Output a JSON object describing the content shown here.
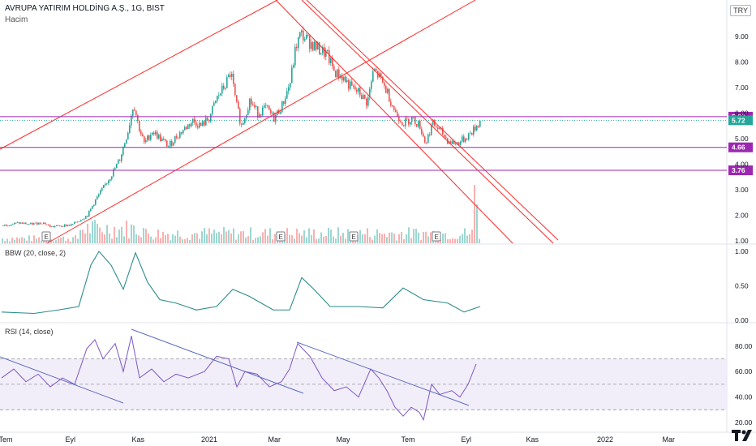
{
  "header": {
    "symbol_line": "AVRUPA YATIRIM HOLDİNG A.Ş., 1G, BIST",
    "volume_label": "Hacim",
    "currency": "TRY"
  },
  "panes": {
    "bbw_title": "BBW (20, close, 2)",
    "rsi_title": "RSI (14, close)"
  },
  "colors": {
    "up": "#26a69a",
    "down": "#ef5350",
    "trendline": "#ff2b2b",
    "level": "#9c27b0",
    "bbw_line": "#2e8b8b",
    "rsi_line": "#7e57c2",
    "rsi_band": "#ede7f6",
    "last_price": "#26a69a"
  },
  "chart_data": [
    {
      "type": "candlestick",
      "name": "price",
      "y_ticks": [
        "1.00",
        "2.00",
        "3.00",
        "4.00",
        "5.00",
        "6.00",
        "7.00",
        "8.00",
        "9.00"
      ],
      "x_ticks": [
        "Tem",
        "Eyl",
        "Kas",
        "2021",
        "Mar",
        "May",
        "Tem",
        "Eyl",
        "Kas",
        "2022",
        "Mar"
      ],
      "levels": [
        {
          "value": 5.86,
          "label": "5.86"
        },
        {
          "value": 4.66,
          "label": "4.66"
        },
        {
          "value": 3.76,
          "label": "3.76"
        }
      ],
      "last_price": {
        "value": 5.72,
        "label": "5.72"
      },
      "event_markers": [
        "E",
        "E",
        "E",
        "E"
      ],
      "series_path": [
        {
          "t": 0,
          "c": 1.6
        },
        {
          "t": 20,
          "c": 1.7
        },
        {
          "t": 35,
          "c": 1.65
        },
        {
          "t": 50,
          "c": 1.72
        },
        {
          "t": 60,
          "c": 1.55
        },
        {
          "t": 75,
          "c": 1.6
        },
        {
          "t": 85,
          "c": 1.62
        },
        {
          "t": 95,
          "c": 1.8
        },
        {
          "t": 105,
          "c": 2.0
        },
        {
          "t": 115,
          "c": 2.6
        },
        {
          "t": 125,
          "c": 3.1
        },
        {
          "t": 135,
          "c": 3.6
        },
        {
          "t": 145,
          "c": 4.2
        },
        {
          "t": 155,
          "c": 5.3
        },
        {
          "t": 162,
          "c": 6.4
        },
        {
          "t": 168,
          "c": 5.5
        },
        {
          "t": 175,
          "c": 4.8
        },
        {
          "t": 185,
          "c": 5.3
        },
        {
          "t": 195,
          "c": 5.0
        },
        {
          "t": 205,
          "c": 4.7
        },
        {
          "t": 215,
          "c": 5.1
        },
        {
          "t": 225,
          "c": 5.4
        },
        {
          "t": 235,
          "c": 5.7
        },
        {
          "t": 245,
          "c": 5.5
        },
        {
          "t": 255,
          "c": 5.8
        },
        {
          "t": 265,
          "c": 6.6
        },
        {
          "t": 275,
          "c": 7.1
        },
        {
          "t": 282,
          "c": 7.6
        },
        {
          "t": 288,
          "c": 6.4
        },
        {
          "t": 295,
          "c": 5.5
        },
        {
          "t": 305,
          "c": 6.5
        },
        {
          "t": 315,
          "c": 6.0
        },
        {
          "t": 325,
          "c": 6.2
        },
        {
          "t": 335,
          "c": 5.8
        },
        {
          "t": 345,
          "c": 6.3
        },
        {
          "t": 355,
          "c": 7.2
        },
        {
          "t": 362,
          "c": 8.6
        },
        {
          "t": 368,
          "c": 9.1
        },
        {
          "t": 378,
          "c": 8.8
        },
        {
          "t": 390,
          "c": 8.5
        },
        {
          "t": 400,
          "c": 8.3
        },
        {
          "t": 410,
          "c": 7.6
        },
        {
          "t": 420,
          "c": 7.4
        },
        {
          "t": 430,
          "c": 7.0
        },
        {
          "t": 440,
          "c": 6.8
        },
        {
          "t": 450,
          "c": 6.4
        },
        {
          "t": 458,
          "c": 7.7
        },
        {
          "t": 465,
          "c": 7.4
        },
        {
          "t": 475,
          "c": 6.8
        },
        {
          "t": 485,
          "c": 6.0
        },
        {
          "t": 495,
          "c": 5.6
        },
        {
          "t": 505,
          "c": 5.8
        },
        {
          "t": 515,
          "c": 5.5
        },
        {
          "t": 522,
          "c": 4.8
        },
        {
          "t": 530,
          "c": 5.6
        },
        {
          "t": 540,
          "c": 5.3
        },
        {
          "t": 550,
          "c": 4.9
        },
        {
          "t": 560,
          "c": 4.8
        },
        {
          "t": 570,
          "c": 5.0
        },
        {
          "t": 580,
          "c": 5.3
        },
        {
          "t": 590,
          "c": 5.72
        }
      ]
    },
    {
      "type": "line",
      "name": "BBW",
      "y_ticks": [
        "0.00",
        "0.50",
        "1.00"
      ],
      "points": [
        {
          "t": 0,
          "v": 0.12
        },
        {
          "t": 40,
          "v": 0.1
        },
        {
          "t": 70,
          "v": 0.15
        },
        {
          "t": 95,
          "v": 0.2
        },
        {
          "t": 110,
          "v": 0.8
        },
        {
          "t": 120,
          "v": 1.0
        },
        {
          "t": 135,
          "v": 0.8
        },
        {
          "t": 150,
          "v": 0.45
        },
        {
          "t": 165,
          "v": 0.98
        },
        {
          "t": 180,
          "v": 0.55
        },
        {
          "t": 195,
          "v": 0.3
        },
        {
          "t": 215,
          "v": 0.25
        },
        {
          "t": 240,
          "v": 0.15
        },
        {
          "t": 265,
          "v": 0.2
        },
        {
          "t": 285,
          "v": 0.45
        },
        {
          "t": 305,
          "v": 0.35
        },
        {
          "t": 335,
          "v": 0.15
        },
        {
          "t": 355,
          "v": 0.15
        },
        {
          "t": 370,
          "v": 0.62
        },
        {
          "t": 385,
          "v": 0.45
        },
        {
          "t": 405,
          "v": 0.2
        },
        {
          "t": 440,
          "v": 0.2
        },
        {
          "t": 470,
          "v": 0.18
        },
        {
          "t": 495,
          "v": 0.47
        },
        {
          "t": 520,
          "v": 0.3
        },
        {
          "t": 550,
          "v": 0.25
        },
        {
          "t": 570,
          "v": 0.12
        },
        {
          "t": 590,
          "v": 0.2
        }
      ]
    },
    {
      "type": "line",
      "name": "RSI",
      "y_ticks": [
        "20.00",
        "40.00",
        "60.00",
        "80.00"
      ],
      "band": [
        30,
        70
      ],
      "midline": 50,
      "points": [
        {
          "t": 0,
          "v": 55
        },
        {
          "t": 15,
          "v": 62
        },
        {
          "t": 30,
          "v": 52
        },
        {
          "t": 45,
          "v": 58
        },
        {
          "t": 60,
          "v": 48
        },
        {
          "t": 75,
          "v": 55
        },
        {
          "t": 90,
          "v": 50
        },
        {
          "t": 105,
          "v": 78
        },
        {
          "t": 115,
          "v": 85
        },
        {
          "t": 125,
          "v": 70
        },
        {
          "t": 140,
          "v": 82
        },
        {
          "t": 150,
          "v": 60
        },
        {
          "t": 160,
          "v": 88
        },
        {
          "t": 170,
          "v": 55
        },
        {
          "t": 185,
          "v": 62
        },
        {
          "t": 200,
          "v": 52
        },
        {
          "t": 215,
          "v": 58
        },
        {
          "t": 230,
          "v": 55
        },
        {
          "t": 250,
          "v": 60
        },
        {
          "t": 265,
          "v": 72
        },
        {
          "t": 280,
          "v": 70
        },
        {
          "t": 290,
          "v": 48
        },
        {
          "t": 300,
          "v": 60
        },
        {
          "t": 315,
          "v": 58
        },
        {
          "t": 330,
          "v": 48
        },
        {
          "t": 345,
          "v": 52
        },
        {
          "t": 355,
          "v": 62
        },
        {
          "t": 365,
          "v": 82
        },
        {
          "t": 380,
          "v": 72
        },
        {
          "t": 395,
          "v": 55
        },
        {
          "t": 410,
          "v": 45
        },
        {
          "t": 425,
          "v": 48
        },
        {
          "t": 440,
          "v": 40
        },
        {
          "t": 455,
          "v": 62
        },
        {
          "t": 465,
          "v": 55
        },
        {
          "t": 475,
          "v": 45
        },
        {
          "t": 485,
          "v": 32
        },
        {
          "t": 495,
          "v": 25
        },
        {
          "t": 505,
          "v": 32
        },
        {
          "t": 515,
          "v": 28
        },
        {
          "t": 520,
          "v": 22
        },
        {
          "t": 530,
          "v": 50
        },
        {
          "t": 540,
          "v": 42
        },
        {
          "t": 555,
          "v": 45
        },
        {
          "t": 565,
          "v": 40
        },
        {
          "t": 575,
          "v": 50
        },
        {
          "t": 585,
          "v": 66
        }
      ]
    }
  ]
}
